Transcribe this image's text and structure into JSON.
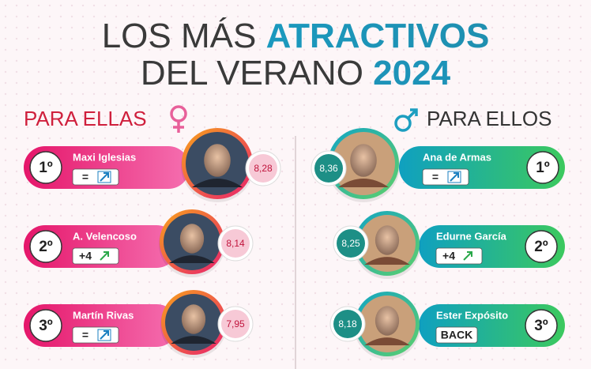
{
  "header": {
    "title_line1": "LOS MÁS",
    "title_highlight1": "ATRACTIVOS",
    "title_line2": "DEL VERANO",
    "title_highlight2": "2024"
  },
  "left": {
    "heading": "PARA ELLAS",
    "entries": [
      {
        "rank": "1º",
        "name": "Maxi Iglesias",
        "change": "=",
        "score": "8,28"
      },
      {
        "rank": "2º",
        "name": "A. Velencoso",
        "change": "+4",
        "score": "8,14"
      },
      {
        "rank": "3º",
        "name": "Martín Rivas",
        "change": "=",
        "score": "7,95"
      }
    ]
  },
  "right": {
    "heading": "PARA ELLOS",
    "entries": [
      {
        "rank": "1º",
        "name": "Ana de Armas",
        "change": "=",
        "score": "8,36"
      },
      {
        "rank": "2º",
        "name": "Edurne García",
        "change": "+4",
        "score": "8,25"
      },
      {
        "rank": "3º",
        "name": "Ester Expósito",
        "change": "BACK",
        "score": "8,18"
      }
    ]
  }
}
